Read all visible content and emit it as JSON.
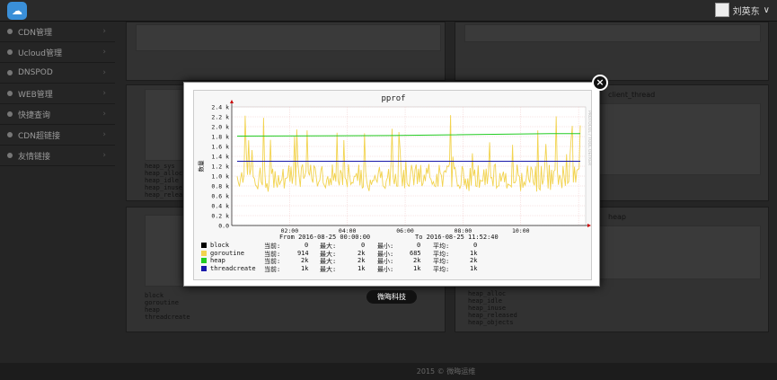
{
  "header": {
    "user_name": "刘英东",
    "logo_icon": "cloud-icon",
    "caret": "∨"
  },
  "sidebar": {
    "items": [
      {
        "label": "CDN管理"
      },
      {
        "label": "Ucloud管理"
      },
      {
        "label": "DNSPOD"
      },
      {
        "label": "WEB管理"
      },
      {
        "label": "快捷查询"
      },
      {
        "label": "CDN超链接"
      },
      {
        "label": "友情链接"
      }
    ]
  },
  "background": {
    "panel_titles": [
      "client_thread",
      "heap"
    ],
    "legend_items": [
      "block",
      "goroutine",
      "heap",
      "threadcreate",
      "heap_sys",
      "heap_alloc",
      "heap_idle",
      "heap_inuse",
      "heap_released",
      "heap_objects"
    ]
  },
  "modal": {
    "close_label": "×",
    "brand_label": "微晦科技"
  },
  "footer": {
    "text": "2015 © 微晦运维"
  },
  "chart_data": {
    "type": "line",
    "title": "pprof",
    "ylabel": "数量",
    "watermark": "PROTOCOL / TOOL OETKER",
    "x_ticks": [
      "02:00",
      "04:00",
      "06:00",
      "08:00",
      "10:00"
    ],
    "y_ticks": [
      "0.0",
      "0.2 k",
      "0.4 k",
      "0.6 k",
      "0.8 k",
      "1.0 k",
      "1.2 k",
      "1.4 k",
      "1.6 k",
      "1.8 k",
      "2.0 k",
      "2.2 k",
      "2.4 k"
    ],
    "ylim": [
      0,
      2400
    ],
    "from_label": "From 2016-08-25 00:00:00",
    "to_label": "To 2016-08-25 11:52:40",
    "legend_headers": {
      "cur": "当前:",
      "max": "最大:",
      "min": "最小:",
      "avg": "平均:"
    },
    "series": [
      {
        "name": "block",
        "color": "#000000",
        "cur": "0",
        "max": "0",
        "min": "0",
        "avg": "0"
      },
      {
        "name": "goroutine",
        "color": "#f2d34e",
        "cur": "914",
        "max": "2k",
        "min": "685",
        "avg": "1k"
      },
      {
        "name": "heap",
        "color": "#22cc22",
        "cur": "2k",
        "max": "2k",
        "min": "2k",
        "avg": "2k"
      },
      {
        "name": "threadcreate",
        "color": "#1818aa",
        "cur": "1k",
        "max": "1k",
        "min": "1k",
        "avg": "1k"
      }
    ],
    "lines": {
      "heap_start": 1810,
      "heap_end": 1860,
      "threadcreate": 1300,
      "goroutine_mean": 1000,
      "goroutine_min": 685,
      "goroutine_max": 2250
    }
  }
}
